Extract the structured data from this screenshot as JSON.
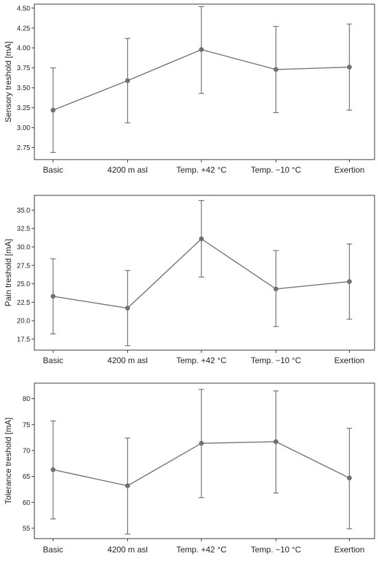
{
  "chart_data": [
    {
      "type": "line",
      "title": "",
      "xlabel": "",
      "ylabel": "Sensory treshold [mA]",
      "categories": [
        "Basic",
        "4200 m asl",
        "Temp. +42 °C",
        "Temp. −10 °C",
        "Exertion"
      ],
      "series": [
        {
          "values": [
            3.22,
            3.59,
            3.98,
            3.73,
            3.76
          ],
          "error_low": [
            2.69,
            3.06,
            3.43,
            3.19,
            3.22
          ],
          "error_high": [
            3.75,
            4.12,
            4.52,
            4.27,
            4.3
          ]
        }
      ],
      "ylim": [
        2.6,
        4.55
      ],
      "yticks": [
        "2.75",
        "3.00",
        "3.25",
        "3.50",
        "3.75",
        "4.00",
        "4.25",
        "4.50"
      ],
      "grid": false,
      "line_color": "#707070"
    },
    {
      "type": "line",
      "title": "",
      "xlabel": "",
      "ylabel": "Pain treshold [mA]",
      "categories": [
        "Basic",
        "4200 m asl",
        "Temp. +42 °C",
        "Temp. −10 °C",
        "Exertion"
      ],
      "series": [
        {
          "values": [
            23.3,
            21.7,
            31.1,
            24.3,
            25.3
          ],
          "error_low": [
            18.2,
            16.6,
            25.9,
            19.2,
            20.2
          ],
          "error_high": [
            28.4,
            26.8,
            36.3,
            29.5,
            30.4
          ]
        }
      ],
      "ylim": [
        16.0,
        37.0
      ],
      "yticks": [
        "17.5",
        "20.0",
        "22.5",
        "25.0",
        "27.5",
        "30.0",
        "32.5",
        "35.0"
      ],
      "grid": false,
      "line_color": "#707070"
    },
    {
      "type": "line",
      "title": "",
      "xlabel": "",
      "ylabel": "Tolerance treshold [mA]",
      "categories": [
        "Basic",
        "4200 m asl",
        "Temp. +42 °C",
        "Temp. −10 °C",
        "Exertion"
      ],
      "series": [
        {
          "values": [
            66.3,
            63.2,
            71.4,
            71.7,
            64.7
          ],
          "error_low": [
            56.8,
            53.9,
            60.9,
            61.8,
            54.9
          ],
          "error_high": [
            75.7,
            72.4,
            81.8,
            81.5,
            74.3
          ]
        }
      ],
      "ylim": [
        53.0,
        83.0
      ],
      "yticks": [
        "55",
        "60",
        "65",
        "70",
        "75",
        "80"
      ],
      "grid": false,
      "line_color": "#707070"
    }
  ]
}
